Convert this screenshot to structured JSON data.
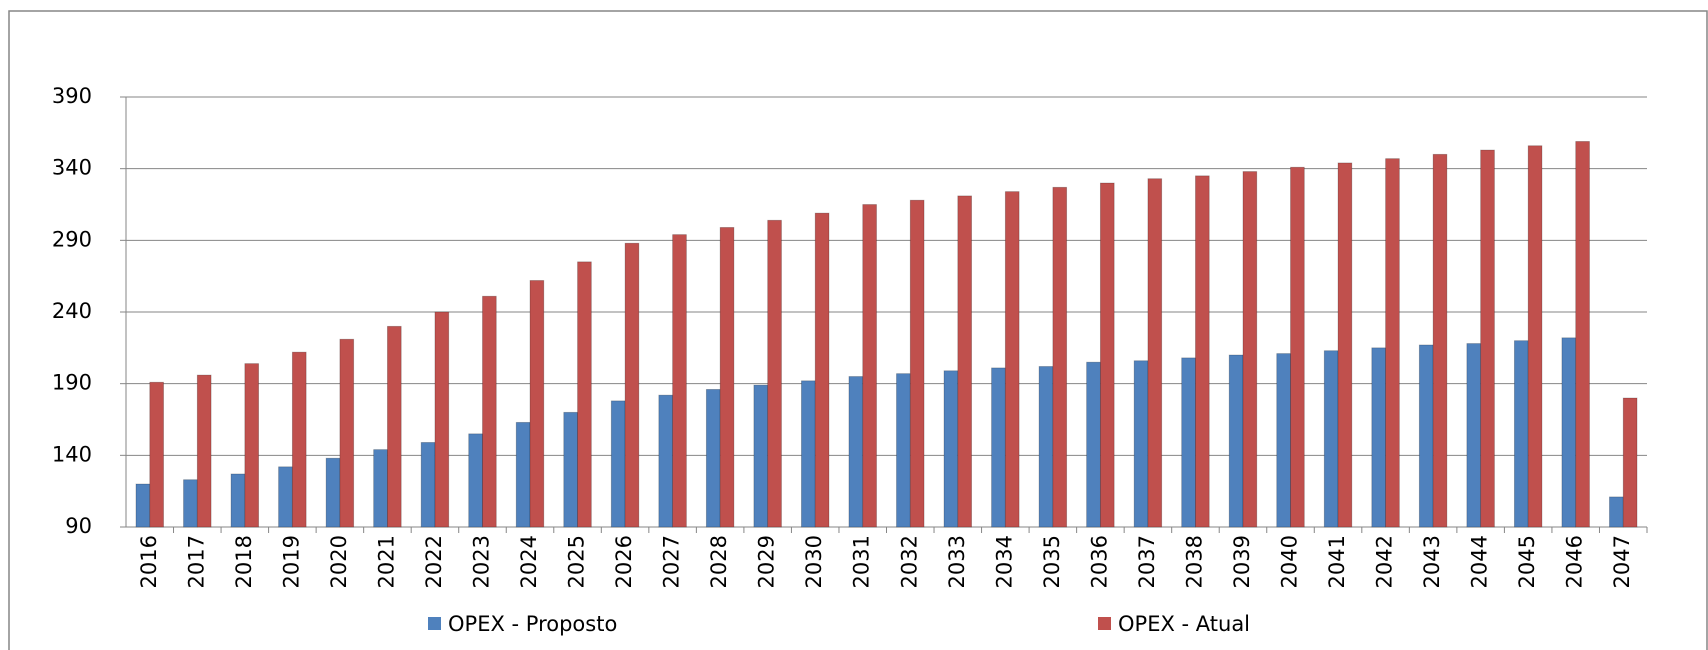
{
  "chart_data": {
    "type": "bar",
    "categories": [
      "2016",
      "2017",
      "2018",
      "2019",
      "2020",
      "2021",
      "2022",
      "2023",
      "2024",
      "2025",
      "2026",
      "2027",
      "2028",
      "2029",
      "2030",
      "2031",
      "2032",
      "2033",
      "2034",
      "2035",
      "2036",
      "2037",
      "2038",
      "2039",
      "2040",
      "2041",
      "2042",
      "2043",
      "2044",
      "2045",
      "2046",
      "2047"
    ],
    "series": [
      {
        "name": "OPEX - Proposto",
        "color": "#4f81bd",
        "values": [
          120,
          123,
          127,
          132,
          138,
          144,
          149,
          155,
          163,
          170,
          178,
          182,
          186,
          189,
          192,
          195,
          197,
          199,
          201,
          202,
          205,
          206,
          208,
          210,
          211,
          213,
          215,
          217,
          218,
          220,
          222,
          111
        ]
      },
      {
        "name": "OPEX - Atual",
        "color": "#c0504d",
        "values": [
          191,
          196,
          204,
          212,
          221,
          230,
          240,
          251,
          262,
          275,
          288,
          294,
          299,
          304,
          309,
          315,
          318,
          321,
          324,
          327,
          330,
          333,
          335,
          338,
          341,
          344,
          347,
          350,
          353,
          356,
          359,
          180
        ]
      }
    ],
    "ylim": [
      90,
      390
    ],
    "yticks": [
      90,
      140,
      190,
      240,
      290,
      340,
      390
    ],
    "grid": true,
    "legend": "bottom"
  }
}
